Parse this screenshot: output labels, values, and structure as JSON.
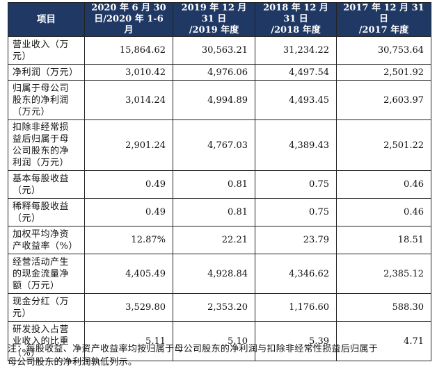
{
  "table": {
    "headers": [
      {
        "line1": "项目",
        "line2": ""
      },
      {
        "line1": "2020 年 6 月 30",
        "line2": "日/2020 年 1-6 月"
      },
      {
        "line1": "2019 年 12 月 31 日",
        "line2": "/2019 年度"
      },
      {
        "line1": "2018 年 12 月 31 日",
        "line2": "/2018 年度"
      },
      {
        "line1": "2017 年 12 月 31 日",
        "line2": "/2017 年度"
      }
    ],
    "rows": [
      {
        "label_lines": [
          "营业收入（万",
          "元）"
        ],
        "values": [
          "15,864.62",
          "30,563.21",
          "31,234.22",
          "30,753.64"
        ],
        "height": 40
      },
      {
        "label_lines": [
          "净利润（万元）"
        ],
        "values": [
          "3,010.42",
          "4,976.06",
          "4,497.54",
          "2,501.92"
        ],
        "height": 23
      },
      {
        "label_lines": [
          "归属于母公司",
          "股东的净利润",
          "（万元）"
        ],
        "values": [
          "3,014.24",
          "4,994.89",
          "4,493.45",
          "2,603.97"
        ],
        "height": 57
      },
      {
        "label_lines": [
          "扣除非经常损",
          "益后归属于母",
          "公司股东的净",
          "利润（万元）"
        ],
        "values": [
          "2,901.24",
          "4,767.03",
          "4,389.43",
          "2,501.22"
        ],
        "height": 73
      },
      {
        "label_lines": [
          "基本每股收益",
          "（元）"
        ],
        "values": [
          "0.49",
          "0.81",
          "0.75",
          "0.46"
        ],
        "height": 40
      },
      {
        "label_lines": [
          "稀释每股收益",
          "（元）"
        ],
        "values": [
          "0.49",
          "0.81",
          "0.75",
          "0.46"
        ],
        "height": 40
      },
      {
        "label_lines": [
          "加权平均净资",
          "产收益率（%）"
        ],
        "values": [
          "12.87%",
          "22.21",
          "23.79",
          "18.51"
        ],
        "height": 40
      },
      {
        "label_lines": [
          "经营活动产生",
          "的现金流量净",
          "额（万元）"
        ],
        "values": [
          "4,405.49",
          "4,928.84",
          "4,346.62",
          "2,385.12"
        ],
        "height": 57
      },
      {
        "label_lines": [
          "现金分红（万",
          "元）"
        ],
        "values": [
          "3,529.80",
          "2,353.20",
          "1,176.60",
          "588.30"
        ],
        "height": 40
      },
      {
        "label_lines": [
          "研发投入占营",
          "业收入的比重",
          "（%）"
        ],
        "values": [
          "5.11",
          "5.10",
          "5.39",
          "4.71"
        ],
        "height": 57
      }
    ]
  },
  "note": {
    "line1": "注：每股收益、净资产收益率均按归属于母公司股东的净利润与扣除非经常性损益后归属于",
    "line2": "母公司股东的净利润孰低列示。"
  },
  "colors": {
    "header_bg": "#1f3864",
    "header_text": "#ffffff",
    "border": "#222222"
  }
}
